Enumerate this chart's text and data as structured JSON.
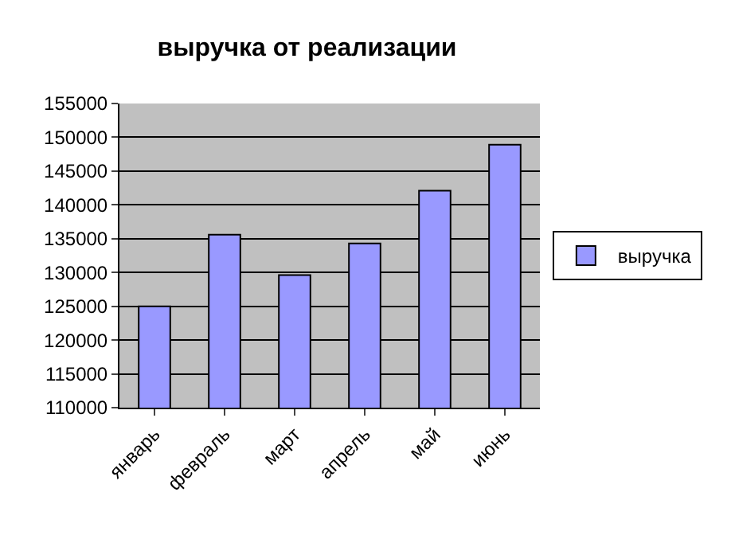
{
  "chart_data": {
    "type": "bar",
    "title": "выручка от реализации",
    "categories": [
      "январь",
      "февраль",
      "март",
      "апрель",
      "май",
      "июнь"
    ],
    "series": [
      {
        "name": "выручка",
        "color": "#9999ff",
        "values": [
          125000,
          135600,
          129600,
          134300,
          142100,
          148900
        ]
      }
    ],
    "ylim": [
      110000,
      155000
    ],
    "yticks": [
      110000,
      115000,
      120000,
      125000,
      130000,
      135000,
      140000,
      145000,
      150000,
      155000
    ],
    "grid": "y",
    "legend": "right"
  }
}
